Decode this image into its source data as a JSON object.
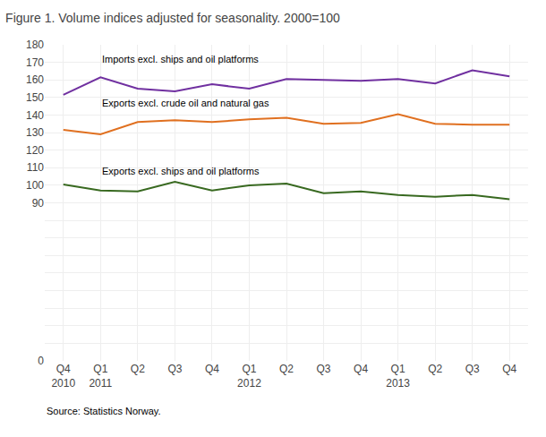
{
  "chart_data": {
    "type": "line",
    "title": "Figure 1. Volume indices adjusted for seasonality. 2000=100",
    "source": "Source: Statistics Norway.",
    "categories": [
      "Q4\n2010",
      "Q1\n2011",
      "Q2",
      "Q3",
      "Q4",
      "Q1\n2012",
      "Q2",
      "Q3",
      "Q4",
      "Q1\n2013",
      "Q2",
      "Q3",
      "Q4"
    ],
    "series": [
      {
        "name": "Imports excl. ships and oil platforms",
        "color": "#7030A0",
        "values": [
          151.5,
          161.5,
          155.0,
          153.5,
          157.5,
          155.0,
          160.5,
          160.0,
          159.5,
          160.5,
          158.0,
          165.5,
          162.0
        ]
      },
      {
        "name": "Exports excl. crude oil and natural gas",
        "color": "#E07020",
        "values": [
          131.5,
          129.0,
          136.0,
          137.0,
          136.0,
          137.5,
          138.5,
          135.0,
          135.5,
          140.5,
          135.0,
          134.5,
          134.5
        ]
      },
      {
        "name": "Exports excl. ships and oil platforms",
        "color": "#386920",
        "values": [
          100.5,
          97.0,
          96.5,
          102.0,
          97.0,
          100.0,
          101.0,
          95.5,
          96.5,
          94.5,
          93.5,
          94.5,
          92.0
        ]
      }
    ],
    "ylim": [
      0,
      180
    ],
    "yticks": [
      0,
      {
        "value": 10,
        "label": ""
      },
      {
        "value": 20,
        "label": ""
      },
      {
        "value": 30,
        "label": ""
      },
      {
        "value": 40,
        "label": ""
      },
      {
        "value": 50,
        "label": ""
      },
      {
        "value": 60,
        "label": ""
      },
      {
        "value": 70,
        "label": ""
      },
      {
        "value": 80,
        "label": ""
      },
      90,
      100,
      110,
      120,
      130,
      140,
      150,
      160,
      170,
      180
    ],
    "grid": true
  }
}
